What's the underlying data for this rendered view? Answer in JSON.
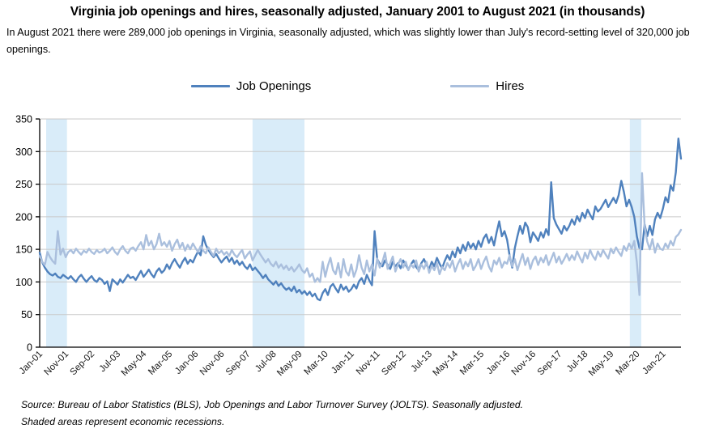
{
  "header": {
    "title": "Virginia job openings and hires, seasonally adjusted, January 2001 to August 2021 (in thousands)",
    "subtitle": "In August 2021 there were 289,000 job openings in Virginia, seasonally adjusted, which was slightly lower than July's record-setting level of 320,000 job openings."
  },
  "legend": [
    {
      "label": "Job Openings",
      "color": "#4f81bd"
    },
    {
      "label": "Hires",
      "color": "#aabfdd"
    }
  ],
  "footer": {
    "source": "Source: Bureau of Labor Statistics (BLS), Job Openings and Labor Turnover Survey (JOLTS). Seasonally adjusted.",
    "note": "Shaded areas represent economic recessions."
  },
  "chart_data": {
    "type": "line",
    "title": "Virginia job openings and hires, seasonally adjusted (in thousands)",
    "x_unit": "months since Jan-2001",
    "x_start_label": "Jan-01",
    "x_end_label": "Aug-21",
    "x_tick_interval_months": 10,
    "x_tick_labels": [
      "Jan-01",
      "Nov-01",
      "Sep-02",
      "Jul-03",
      "May-04",
      "Mar-05",
      "Jan-06",
      "Nov-06",
      "Sep-07",
      "Jul-08",
      "May-09",
      "Mar-10",
      "Jan-11",
      "Nov-11",
      "Sep-12",
      "Jul-13",
      "May-14",
      "Mar-15",
      "Jan-16",
      "Nov-16",
      "Sep-17",
      "Jul-18",
      "May-19",
      "Mar-20",
      "Jan-21"
    ],
    "ylim": [
      0,
      350
    ],
    "y_ticks": [
      0,
      50,
      100,
      150,
      200,
      250,
      300,
      350
    ],
    "grid": "horizontal",
    "legend_position": "top",
    "recession_bands_month_index": [
      [
        2.5,
        10.5
      ],
      [
        82,
        102
      ],
      [
        227.3,
        231.7
      ]
    ],
    "key_points": {
      "job_openings_aug_2021": 289,
      "job_openings_jul_2021_record": 320
    },
    "colors": {
      "job_openings_line": "#4f81bd",
      "hires_line": "#aabfdd",
      "recession_band": "#d9ecf9",
      "gridline": "#c9c9c9",
      "axis": "#000000"
    },
    "series": [
      {
        "name": "Job Openings",
        "color": "#4f81bd",
        "values": [
          145,
          130,
          122,
          116,
          112,
          110,
          113,
          108,
          106,
          111,
          108,
          105,
          109,
          104,
          100,
          107,
          111,
          105,
          100,
          105,
          109,
          103,
          100,
          106,
          103,
          97,
          101,
          86,
          104,
          100,
          96,
          104,
          99,
          105,
          111,
          106,
          108,
          103,
          110,
          117,
          108,
          113,
          119,
          112,
          107,
          116,
          121,
          114,
          118,
          127,
          120,
          129,
          135,
          128,
          122,
          131,
          137,
          128,
          134,
          130,
          139,
          147,
          141,
          170,
          157,
          149,
          143,
          138,
          143,
          136,
          130,
          135,
          139,
          131,
          137,
          128,
          133,
          126,
          131,
          124,
          120,
          127,
          118,
          122,
          117,
          112,
          106,
          111,
          104,
          100,
          96,
          101,
          94,
          98,
          92,
          88,
          91,
          86,
          93,
          84,
          88,
          82,
          86,
          80,
          85,
          78,
          82,
          74,
          72,
          83,
          89,
          80,
          93,
          97,
          90,
          84,
          96,
          88,
          93,
          85,
          89,
          96,
          90,
          101,
          106,
          97,
          111,
          102,
          95,
          178,
          135,
          128,
          124,
          133,
          126,
          120,
          131,
          124,
          129,
          121,
          133,
          126,
          119,
          127,
          133,
          123,
          118,
          129,
          135,
          126,
          120,
          131,
          124,
          137,
          128,
          121,
          132,
          141,
          134,
          147,
          138,
          153,
          144,
          157,
          148,
          161,
          152,
          159,
          150,
          163,
          154,
          167,
          173,
          160,
          169,
          156,
          176,
          193,
          170,
          178,
          165,
          140,
          122,
          152,
          170,
          186,
          174,
          191,
          184,
          161,
          176,
          170,
          163,
          176,
          168,
          181,
          172,
          253,
          198,
          188,
          181,
          174,
          186,
          179,
          186,
          196,
          188,
          201,
          193,
          206,
          198,
          211,
          203,
          196,
          216,
          208,
          212,
          219,
          226,
          215,
          222,
          229,
          221,
          233,
          255,
          238,
          216,
          226,
          215,
          200,
          170,
          152,
          150,
          188,
          170,
          186,
          172,
          196,
          206,
          198,
          212,
          230,
          222,
          248,
          240,
          268,
          320,
          289
        ]
      },
      {
        "name": "Hires",
        "color": "#aabfdd",
        "values": [
          140,
          131,
          126,
          146,
          138,
          132,
          128,
          178,
          142,
          151,
          138,
          146,
          149,
          144,
          151,
          146,
          142,
          148,
          145,
          151,
          146,
          143,
          149,
          145,
          147,
          151,
          144,
          148,
          153,
          146,
          142,
          150,
          155,
          148,
          144,
          151,
          153,
          148,
          155,
          161,
          150,
          172,
          156,
          163,
          150,
          158,
          174,
          156,
          161,
          154,
          163,
          148,
          158,
          165,
          152,
          160,
          148,
          157,
          150,
          159,
          152,
          146,
          155,
          148,
          144,
          153,
          146,
          140,
          151,
          144,
          148,
          142,
          146,
          140,
          149,
          142,
          138,
          144,
          149,
          136,
          142,
          147,
          133,
          141,
          149,
          142,
          136,
          130,
          135,
          128,
          124,
          131,
          122,
          127,
          120,
          125,
          118,
          123,
          116,
          121,
          127,
          118,
          114,
          121,
          108,
          113,
          100,
          106,
          100,
          131,
          108,
          125,
          137,
          118,
          112,
          129,
          107,
          135,
          116,
          110,
          127,
          108,
          119,
          141,
          122,
          112,
          133,
          116,
          127,
          110,
          136,
          122,
          131,
          145,
          120,
          129,
          139,
          116,
          127,
          135,
          122,
          131,
          118,
          127,
          122,
          133,
          116,
          127,
          120,
          131,
          114,
          125,
          118,
          129,
          112,
          123,
          118,
          129,
          122,
          133,
          116,
          127,
          135,
          120,
          131,
          124,
          135,
          118,
          125,
          135,
          120,
          131,
          139,
          124,
          116,
          133,
          127,
          137,
          122,
          131,
          128,
          141,
          124,
          135,
          118,
          131,
          143,
          126,
          137,
          120,
          133,
          139,
          126,
          137,
          130,
          141,
          126,
          135,
          145,
          130,
          139,
          128,
          135,
          143,
          133,
          141,
          134,
          147,
          138,
          130,
          145,
          136,
          149,
          140,
          134,
          147,
          139,
          149,
          142,
          136,
          151,
          144,
          153,
          146,
          140,
          155,
          148,
          159,
          151,
          163,
          130,
          80,
          267,
          185,
          162,
          150,
          166,
          145,
          159,
          151,
          149,
          159,
          152,
          163,
          156,
          169,
          173,
          180
        ]
      }
    ]
  }
}
